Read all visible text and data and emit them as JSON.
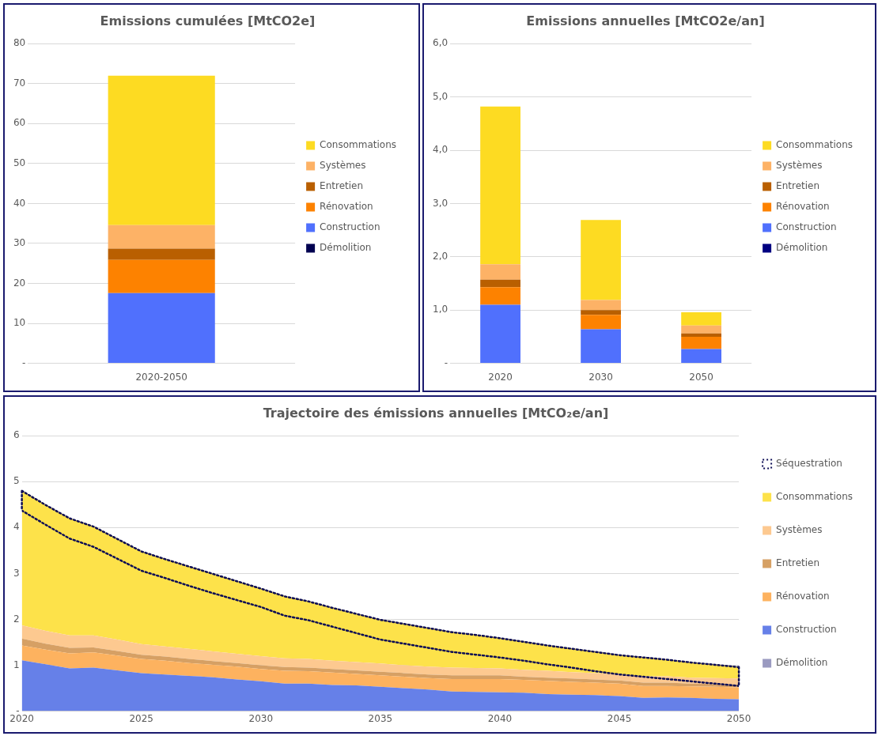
{
  "chart_data": [
    {
      "type": "bar",
      "title": "Emissions cumulées [MtCO2e]",
      "categories": [
        "2020-2050"
      ],
      "stacked": true,
      "legend": "right",
      "grid": "y",
      "ylim": [
        0,
        80
      ],
      "yticks": [
        {
          "value": 0,
          "label": "-"
        },
        10,
        20,
        30,
        40,
        50,
        60,
        70,
        80
      ],
      "series": [
        {
          "name": "Démolition",
          "color": "#000050",
          "values": [
            0
          ]
        },
        {
          "name": "Construction",
          "color": "#5070fd",
          "values": [
            17.6
          ]
        },
        {
          "name": "Rénovation",
          "color": "#fd8200",
          "values": [
            8.3
          ]
        },
        {
          "name": "Entretien",
          "color": "#b95f00",
          "values": [
            2.8
          ]
        },
        {
          "name": "Systèmes",
          "color": "#fdb266",
          "values": [
            5.9
          ]
        },
        {
          "name": "Consommations",
          "color": "#fddb22",
          "values": [
            37.4
          ]
        }
      ]
    },
    {
      "type": "bar",
      "title": "Emissions annuelles [MtCO2e/an]",
      "categories": [
        "2020",
        "2030",
        "2050"
      ],
      "stacked": true,
      "legend": "right",
      "grid": "y",
      "ylim": [
        0,
        6
      ],
      "yticks": [
        {
          "value": 0,
          "label": "-"
        },
        {
          "value": 1,
          "label": "1,0"
        },
        {
          "value": 2,
          "label": "2,0"
        },
        {
          "value": 3,
          "label": "3,0"
        },
        {
          "value": 4,
          "label": "4,0"
        },
        {
          "value": 5,
          "label": "5,0"
        },
        {
          "value": 6,
          "label": "6,0"
        }
      ],
      "series": [
        {
          "name": "Démolition",
          "color": "#000080",
          "values": [
            0,
            0,
            0
          ]
        },
        {
          "name": "Construction",
          "color": "#5070fd",
          "values": [
            1.1,
            0.64,
            0.27
          ]
        },
        {
          "name": "Rénovation",
          "color": "#fd8200",
          "values": [
            0.33,
            0.27,
            0.23
          ]
        },
        {
          "name": "Entretien",
          "color": "#b95f00",
          "values": [
            0.14,
            0.09,
            0.06
          ]
        },
        {
          "name": "Systèmes",
          "color": "#fdb266",
          "values": [
            0.29,
            0.19,
            0.15
          ]
        },
        {
          "name": "Consommations",
          "color": "#fddb22",
          "values": [
            2.96,
            1.5,
            0.25
          ]
        }
      ]
    },
    {
      "type": "area",
      "title": "Trajectoire des émissions annuelles [MtCO₂e/an]",
      "stacked": true,
      "legend": "right",
      "grid": "y",
      "xlim": [
        2020,
        2050
      ],
      "xticks": [
        2020,
        2025,
        2030,
        2035,
        2040,
        2045,
        2050
      ],
      "ylim": [
        0,
        6
      ],
      "yticks": [
        {
          "value": 0,
          "label": "-"
        },
        1,
        2,
        3,
        4,
        5,
        6
      ],
      "x": [
        2020,
        2021,
        2022,
        2023,
        2024,
        2025,
        2026,
        2027,
        2028,
        2029,
        2030,
        2031,
        2032,
        2033,
        2034,
        2035,
        2036,
        2037,
        2038,
        2039,
        2040,
        2041,
        2042,
        2043,
        2044,
        2045,
        2046,
        2047,
        2048,
        2049,
        2050
      ],
      "series": [
        {
          "name": "Démolition",
          "color": "#9a9ac0",
          "values": [
            0.01,
            0.01,
            0.01,
            0.01,
            0.01,
            0.01,
            0.01,
            0.01,
            0.01,
            0.01,
            0.01,
            0.01,
            0.01,
            0.01,
            0.01,
            0.01,
            0.01,
            0.01,
            0.01,
            0.01,
            0.01,
            0.01,
            0.01,
            0.01,
            0.01,
            0.01,
            0.01,
            0.01,
            0.01,
            0.01,
            0.01
          ]
        },
        {
          "name": "Construction",
          "color": "#6680e8",
          "values": [
            1.1,
            1.01,
            0.92,
            0.94,
            0.88,
            0.82,
            0.79,
            0.76,
            0.73,
            0.68,
            0.64,
            0.59,
            0.59,
            0.56,
            0.55,
            0.52,
            0.49,
            0.46,
            0.42,
            0.41,
            0.4,
            0.39,
            0.36,
            0.35,
            0.34,
            0.32,
            0.28,
            0.29,
            0.28,
            0.26,
            0.25
          ]
        },
        {
          "name": "Rénovation",
          "color": "#fdb25f",
          "values": [
            0.32,
            0.32,
            0.33,
            0.33,
            0.32,
            0.31,
            0.3,
            0.28,
            0.27,
            0.28,
            0.27,
            0.28,
            0.27,
            0.27,
            0.25,
            0.25,
            0.25,
            0.25,
            0.27,
            0.28,
            0.29,
            0.28,
            0.29,
            0.28,
            0.27,
            0.27,
            0.26,
            0.25,
            0.25,
            0.26,
            0.26
          ]
        },
        {
          "name": "Entretien",
          "color": "#d6a064",
          "values": [
            0.15,
            0.13,
            0.12,
            0.11,
            0.1,
            0.09,
            0.09,
            0.09,
            0.08,
            0.08,
            0.08,
            0.08,
            0.08,
            0.08,
            0.08,
            0.08,
            0.08,
            0.08,
            0.08,
            0.08,
            0.08,
            0.07,
            0.07,
            0.07,
            0.07,
            0.07,
            0.07,
            0.07,
            0.06,
            0.06,
            0.06
          ]
        },
        {
          "name": "Systèmes",
          "color": "#fdc990",
          "values": [
            0.29,
            0.28,
            0.27,
            0.26,
            0.25,
            0.23,
            0.22,
            0.22,
            0.21,
            0.2,
            0.2,
            0.19,
            0.19,
            0.18,
            0.18,
            0.18,
            0.17,
            0.17,
            0.17,
            0.16,
            0.15,
            0.15,
            0.15,
            0.14,
            0.14,
            0.14,
            0.14,
            0.14,
            0.13,
            0.13,
            0.13
          ]
        },
        {
          "name": "Consommations",
          "color": "#fde24a",
          "values": [
            2.94,
            2.75,
            2.56,
            2.38,
            2.2,
            2.03,
            1.91,
            1.8,
            1.7,
            1.59,
            1.48,
            1.36,
            1.26,
            1.16,
            1.06,
            0.96,
            0.91,
            0.85,
            0.78,
            0.73,
            0.67,
            0.62,
            0.56,
            0.52,
            0.47,
            0.42,
            0.42,
            0.37,
            0.34,
            0.3,
            0.26
          ]
        },
        {
          "name": "Séquestration",
          "type": "line",
          "color": "#0d0d55",
          "line_style": "dotted",
          "values": [
            4.37,
            4.06,
            3.76,
            3.58,
            3.32,
            3.06,
            2.9,
            2.73,
            2.57,
            2.42,
            2.27,
            2.08,
            1.98,
            1.84,
            1.7,
            1.56,
            1.47,
            1.38,
            1.29,
            1.23,
            1.17,
            1.1,
            1.02,
            0.95,
            0.87,
            0.8,
            0.75,
            0.7,
            0.65,
            0.6,
            0.55
          ]
        },
        {
          "type": "line",
          "color": "#0d0d55",
          "line_style": "dotted",
          "values": [
            4.8,
            4.49,
            4.2,
            4.02,
            3.75,
            3.48,
            3.31,
            3.15,
            2.99,
            2.83,
            2.67,
            2.5,
            2.39,
            2.25,
            2.12,
            1.99,
            1.9,
            1.81,
            1.72,
            1.66,
            1.59,
            1.51,
            1.43,
            1.36,
            1.29,
            1.22,
            1.17,
            1.12,
            1.06,
            1.01,
            0.96
          ]
        }
      ]
    }
  ]
}
